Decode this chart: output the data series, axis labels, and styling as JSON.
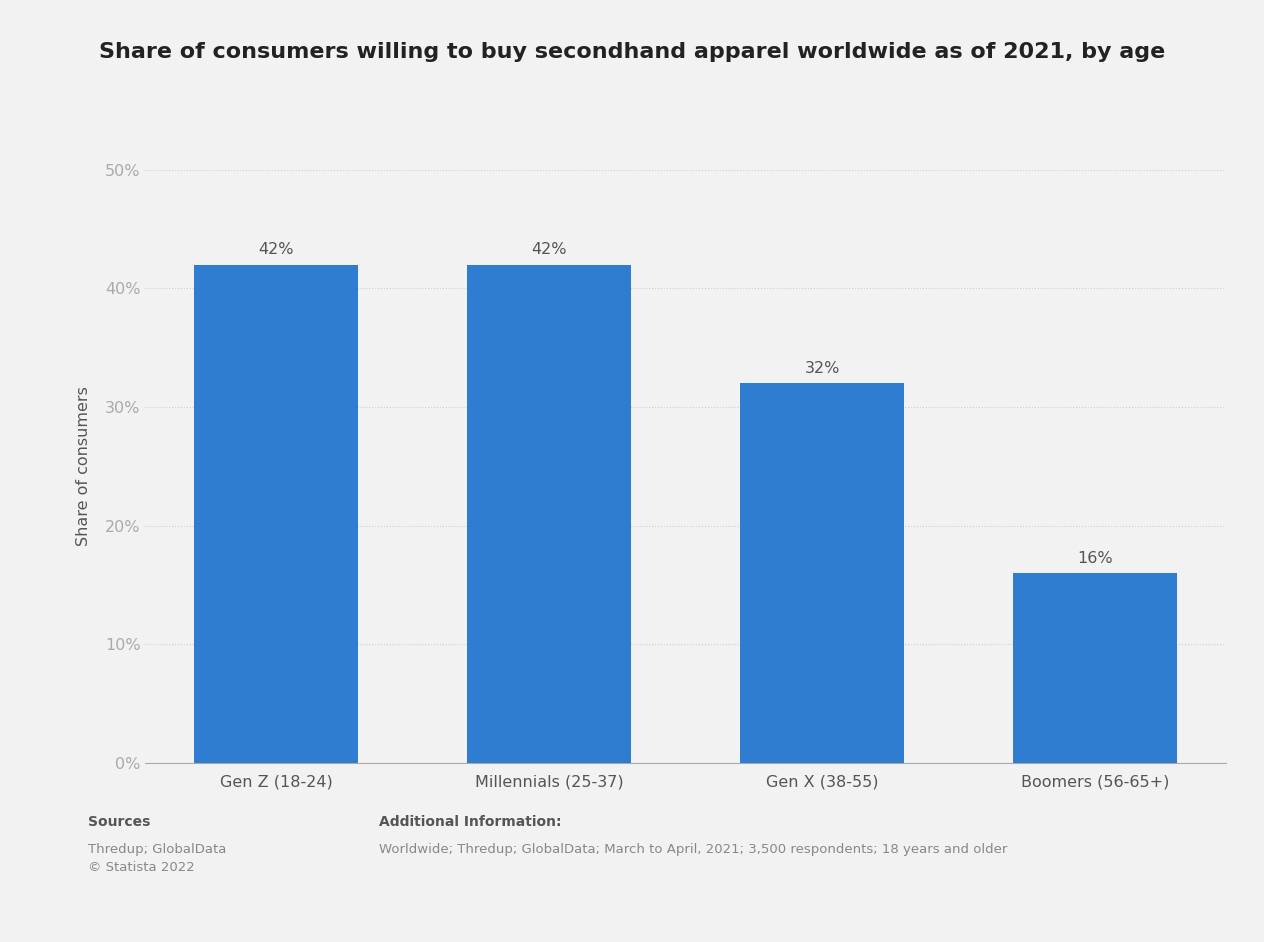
{
  "title": "Share of consumers willing to buy secondhand apparel worldwide as of 2021, by age",
  "categories": [
    "Gen Z (18-24)",
    "Millennials (25-37)",
    "Gen X (38-55)",
    "Boomers (56-65+)"
  ],
  "values": [
    42,
    42,
    32,
    16
  ],
  "bar_color": "#2e7dd1",
  "ylabel": "Share of consumers",
  "ylim": [
    0,
    50
  ],
  "yticks": [
    0,
    10,
    20,
    30,
    40,
    50
  ],
  "ytick_labels": [
    "0%",
    "10%",
    "20%",
    "30%",
    "40%",
    "50%"
  ],
  "value_labels": [
    "42%",
    "42%",
    "32%",
    "16%"
  ],
  "background_color": "#f2f2f2",
  "plot_bg_color": "#f2f2f2",
  "title_fontsize": 16,
  "label_fontsize": 11.5,
  "tick_fontsize": 11.5,
  "value_fontsize": 11.5,
  "sources_label": "Sources",
  "sources_body": "Thredup; GlobalData\n© Statista 2022",
  "additional_label": "Additional Information:",
  "additional_body": "Worldwide; Thredup; GlobalData; March to April, 2021; 3,500 respondents; 18 years and older"
}
